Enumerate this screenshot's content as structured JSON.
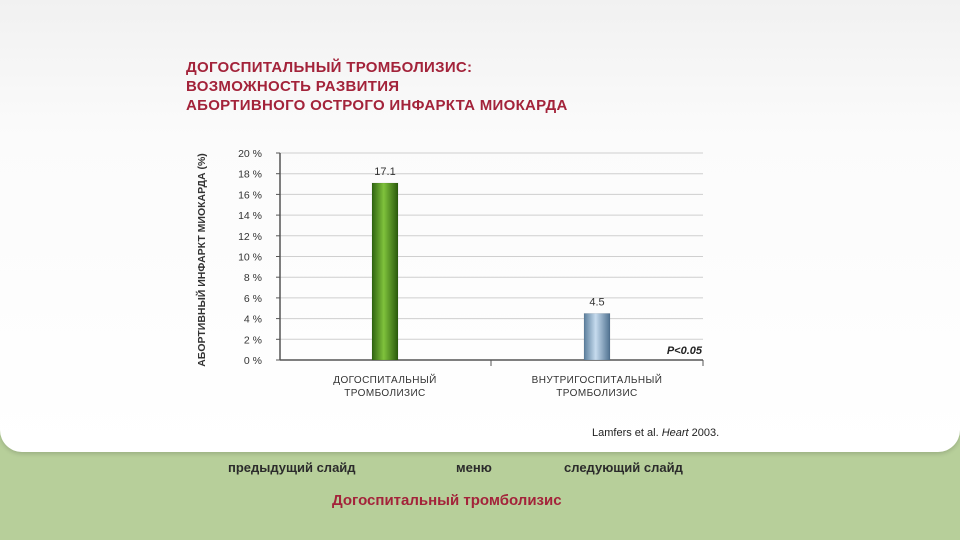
{
  "slide": {
    "title_lines": [
      "ДОГОСПИТАЛЬНЫЙ ТРОМБОЛИЗИС:",
      "ВОЗМОЖНОСТЬ РАЗВИТИЯ",
      "АБОРТИВНОГО ОСТРОГО ИНФАРКТА МИОКАРДА"
    ],
    "citation_author": "Lamfers et al.",
    "citation_journal": "Heart",
    "citation_year": "2003."
  },
  "nav": {
    "prev_label": "предыдущий слайд",
    "menu_label": "меню",
    "next_label": "следующий слайд"
  },
  "footer": {
    "title": "Догоспитальный тромболизис"
  },
  "colors": {
    "title": "#a3233a",
    "background_green": "#b7cf9a",
    "bar_green": "#4e8a1c",
    "bar_blue": "#86a7c4"
  },
  "chart_data": {
    "type": "bar",
    "categories": [
      [
        "ДОГОСПИТАЛЬНЫЙ",
        "ТРОМБОЛИЗИС"
      ],
      [
        "ВНУТРИГОСПИТАЛЬНЫЙ",
        "ТРОМБОЛИЗИС"
      ]
    ],
    "values": [
      17.1,
      4.5
    ],
    "data_labels": [
      "17.1",
      "4.5"
    ],
    "ylabel": "АБОРТИВНЫЙ ИНФАРКТ МИОКАРДА (%)",
    "yticks": [
      "0 %",
      "2 %",
      "4 %",
      "6 %",
      "8 %",
      "10 %",
      "12 %",
      "14 %",
      "16 %",
      "18 %",
      "20 %"
    ],
    "ylim": [
      0,
      20
    ],
    "grid": true,
    "annotation": "P<0.05",
    "bar_colors": [
      "green",
      "blue"
    ]
  }
}
